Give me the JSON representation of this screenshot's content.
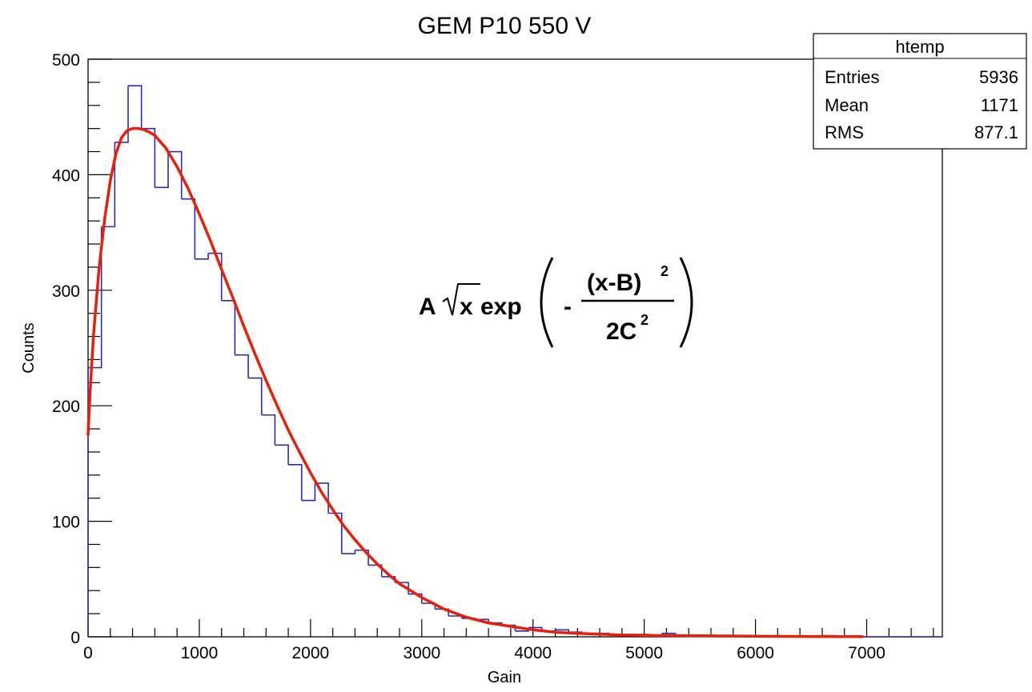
{
  "chart_data": {
    "type": "bar",
    "title": "GEM P10 550 V",
    "xlabel": "Gain",
    "ylabel": "Counts",
    "xlim": [
      0,
      7680
    ],
    "ylim": [
      0,
      500
    ],
    "x_ticks": [
      0,
      1000,
      2000,
      3000,
      4000,
      5000,
      6000,
      7000
    ],
    "y_ticks": [
      0,
      100,
      200,
      300,
      400,
      500
    ],
    "histogram": {
      "bin_width": 120,
      "bin_low_edges": [
        0,
        120,
        240,
        360,
        480,
        600,
        720,
        840,
        960,
        1080,
        1200,
        1320,
        1440,
        1560,
        1680,
        1800,
        1920,
        2040,
        2160,
        2280,
        2400,
        2520,
        2640,
        2760,
        2880,
        3000,
        3120,
        3240,
        3360,
        3480,
        3600,
        3720,
        3840,
        3960,
        4080,
        4200,
        4320,
        4440,
        4560,
        4680,
        4800,
        4920,
        5040,
        5160,
        5280,
        5400,
        5520,
        5640,
        5760,
        5880,
        6000,
        6120,
        6240,
        6360,
        6480,
        6600,
        6720,
        6840,
        6960,
        7080,
        7200,
        7320,
        7440,
        7560
      ],
      "counts": [
        233,
        355,
        428,
        477,
        440,
        389,
        420,
        379,
        327,
        332,
        291,
        244,
        224,
        192,
        166,
        149,
        118,
        133,
        107,
        72,
        75,
        62,
        52,
        47,
        37,
        29,
        24,
        18,
        16,
        15,
        12,
        10,
        5,
        8,
        5,
        6,
        4,
        3,
        3,
        2,
        2,
        2,
        1,
        3,
        1,
        1,
        1,
        1,
        1,
        1,
        0,
        1,
        0,
        0,
        0,
        1,
        0,
        0,
        0,
        0,
        0,
        0,
        0,
        0
      ],
      "color": "#2b2bb5"
    },
    "fit": {
      "color": "#e8200a",
      "x_range": [
        0,
        6960
      ],
      "x": [
        0,
        20,
        50,
        100,
        150,
        200,
        250,
        300,
        350,
        400,
        450,
        500,
        550,
        600,
        700,
        800,
        900,
        1000,
        1100,
        1200,
        1300,
        1400,
        1500,
        1600,
        1700,
        1800,
        1900,
        2000,
        2100,
        2200,
        2300,
        2400,
        2500,
        2600,
        2700,
        2800,
        2900,
        3000,
        3200,
        3400,
        3600,
        3800,
        4000,
        4200,
        4400,
        4600,
        4800,
        5000,
        5500,
        6000,
        6500,
        6960
      ],
      "y": [
        175,
        215,
        262,
        320,
        362,
        395,
        418,
        432,
        438,
        440,
        440,
        439,
        437,
        434,
        423,
        407,
        388,
        366,
        343,
        318,
        294,
        269,
        245,
        222,
        200,
        179,
        160,
        142,
        125,
        110,
        96,
        84,
        73,
        63,
        54,
        46,
        40,
        34,
        24,
        17,
        12,
        9,
        6,
        4,
        3,
        2.2,
        1.6,
        1.2,
        0.8,
        0.5,
        0.3,
        0.2
      ]
    },
    "stats_box": {
      "title": "htemp",
      "rows": [
        {
          "label": "Entries",
          "value": "5936"
        },
        {
          "label": "Mean",
          "value": "1171"
        },
        {
          "label": "RMS",
          "value": "877.1"
        }
      ]
    },
    "formula": {
      "coef": "A",
      "radicand": "x",
      "func": "exp",
      "minus": "-",
      "numerator": "(x-B)",
      "num_exp": "2",
      "denominator": "2C",
      "den_exp": "2"
    },
    "grid": false
  }
}
